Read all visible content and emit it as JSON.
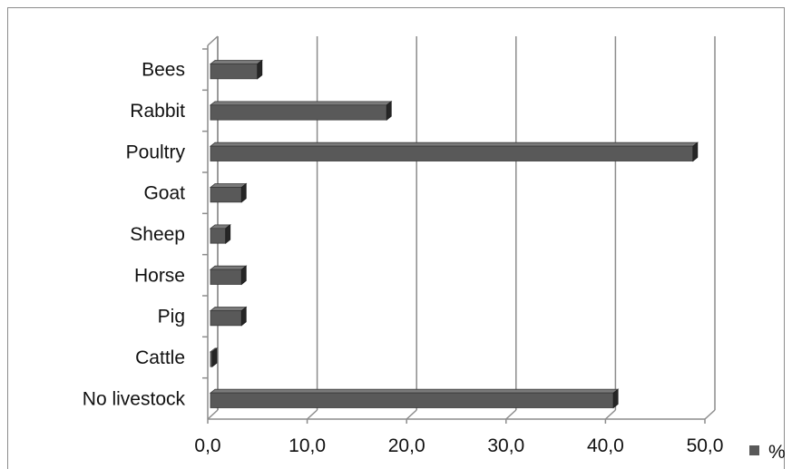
{
  "chart_data": {
    "type": "bar",
    "orientation": "horizontal",
    "style": "3d",
    "categories": [
      "Bees",
      "Rabbit",
      "Poultry",
      "Goat",
      "Sheep",
      "Horse",
      "Pig",
      "Cattle",
      "No livestock"
    ],
    "series": [
      {
        "name": "%",
        "values": [
          5.0,
          18.0,
          48.8,
          3.4,
          1.8,
          3.4,
          3.4,
          0.3,
          40.8
        ]
      }
    ],
    "x_ticks": [
      "0,0",
      "10,0",
      "20,0",
      "30,0",
      "40,0",
      "50,0"
    ],
    "xlim": [
      0,
      50
    ],
    "grid": true,
    "legend": {
      "position": "bottom-right",
      "label": "%"
    },
    "colors": {
      "bar": "#595959",
      "bar_top": "#7a7a7a",
      "bar_side": "#262626",
      "grid": "#8c8c8c",
      "axis": "#8c8c8c"
    }
  }
}
